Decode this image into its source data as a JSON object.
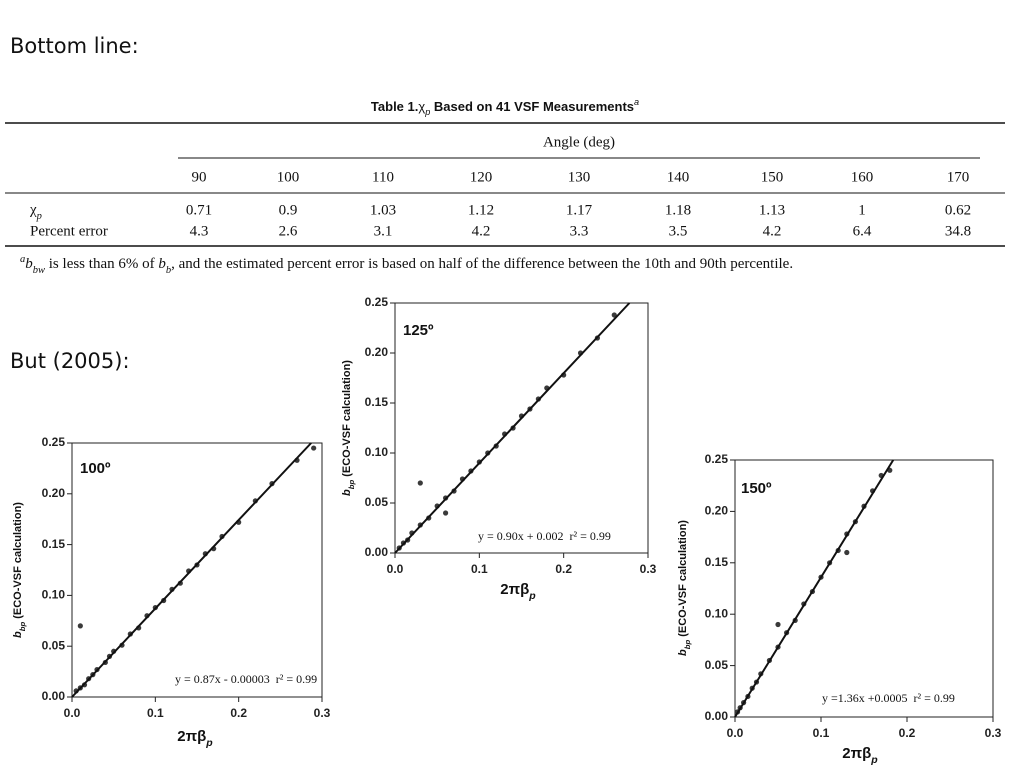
{
  "slide": {
    "heading1": "Bottom line:",
    "heading2": "But (2005):"
  },
  "table": {
    "title": {
      "label": "Table 1.",
      "symbol": "χ",
      "subscript": "p",
      "text": " Based on 41 VSF Measurements",
      "superscript": "a"
    },
    "header": "Angle (deg)",
    "columns": [
      90,
      100,
      110,
      120,
      130,
      140,
      150,
      160,
      170
    ],
    "rows": [
      {
        "label": {
          "symbol": "χ",
          "subscript": "p"
        },
        "values": [
          0.71,
          0.9,
          1.03,
          1.12,
          1.17,
          1.18,
          1.13,
          1,
          0.62
        ]
      },
      {
        "label": "Percent error",
        "values": [
          4.3,
          2.6,
          3.1,
          4.2,
          3.3,
          3.5,
          4.2,
          6.4,
          34.8
        ]
      }
    ],
    "footnote": {
      "superscript": "a",
      "symbol": "b",
      "subscript": "bw",
      "text1": " is less than 6% of ",
      "symbol2": "b",
      "subscript2": "b",
      "text2": ", and the estimated percent error is based on half of the difference between the 10th and 90th percentile."
    }
  },
  "chart_data": [
    {
      "type": "scatter",
      "title": "100º",
      "annotation": "y = 0.87x - 0.00003  r² = 0.99",
      "x_label": {
        "symbol": "2πβ",
        "subscript": "p"
      },
      "y_label": {
        "symbol": "b",
        "subscript": "bp",
        "text": " (ECO-VSF calculation)"
      },
      "xlim": [
        0,
        0.3
      ],
      "ylim": [
        0,
        0.25
      ],
      "xticks": [
        {
          "value": 0,
          "label": "0.0"
        },
        0.1,
        0.2,
        0.3
      ],
      "yticks": [
        {
          "value": 0,
          "label": "0.00"
        },
        0.05,
        {
          "value": 0.1,
          "label": "0.10"
        },
        0.15,
        {
          "value": 0.2,
          "label": "0.20"
        },
        0.25
      ],
      "color": "#3a3a3a",
      "x": [
        0.005,
        0.01,
        0.015,
        0.02,
        0.025,
        0.03,
        0.04,
        0.05,
        0.06,
        0.07,
        0.08,
        0.09,
        0.1,
        0.11,
        0.12,
        0.13,
        0.14,
        0.15,
        0.16,
        0.17,
        0.18,
        0.2,
        0.22,
        0.24,
        0.27,
        0.29,
        0.01,
        0.045
      ],
      "values": [
        0.006,
        0.009,
        0.012,
        0.018,
        0.022,
        0.027,
        0.034,
        0.045,
        0.051,
        0.062,
        0.068,
        0.08,
        0.088,
        0.095,
        0.106,
        0.112,
        0.124,
        0.13,
        0.141,
        0.146,
        0.158,
        0.172,
        0.193,
        0.21,
        0.233,
        0.245,
        0.07,
        0.04
      ],
      "fit": {
        "x": [
          0,
          0.287
        ],
        "values": [
          0,
          0.25
        ]
      }
    },
    {
      "type": "scatter",
      "title": "125º",
      "annotation": "y = 0.90x + 0.002  r² = 0.99",
      "x_label": {
        "symbol": "2πβ",
        "subscript": "p"
      },
      "y_label": {
        "symbol": "b",
        "subscript": "bp",
        "text": " (ECO-VSF calculation)"
      },
      "xlim": [
        0,
        0.3
      ],
      "ylim": [
        0,
        0.25
      ],
      "xticks": [
        {
          "value": 0,
          "label": "0.0"
        },
        0.1,
        0.2,
        0.3
      ],
      "yticks": [
        {
          "value": 0,
          "label": "0.00"
        },
        0.05,
        {
          "value": 0.1,
          "label": "0.10"
        },
        0.15,
        {
          "value": 0.2,
          "label": "0.20"
        },
        0.25
      ],
      "color": "#3a3a3a",
      "x": [
        0.005,
        0.01,
        0.015,
        0.02,
        0.03,
        0.04,
        0.05,
        0.06,
        0.07,
        0.08,
        0.09,
        0.1,
        0.11,
        0.12,
        0.13,
        0.14,
        0.15,
        0.16,
        0.17,
        0.18,
        0.2,
        0.22,
        0.24,
        0.26,
        0.03,
        0.06
      ],
      "values": [
        0.005,
        0.01,
        0.013,
        0.02,
        0.028,
        0.035,
        0.047,
        0.055,
        0.062,
        0.074,
        0.082,
        0.091,
        0.1,
        0.107,
        0.119,
        0.125,
        0.137,
        0.144,
        0.154,
        0.165,
        0.178,
        0.2,
        0.215,
        0.238,
        0.07,
        0.04
      ],
      "fit": {
        "x": [
          0,
          0.278
        ],
        "values": [
          0,
          0.25
        ]
      }
    },
    {
      "type": "scatter",
      "title": "150º",
      "annotation": "y =1.36x +0.0005  r² = 0.99",
      "x_label": {
        "symbol": "2πβ",
        "subscript": "p"
      },
      "y_label": {
        "symbol": "b",
        "subscript": "bp",
        "text": " (ECO-VSF calculation)"
      },
      "xlim": [
        0,
        0.3
      ],
      "ylim": [
        0,
        0.25
      ],
      "xticks": [
        {
          "value": 0,
          "label": "0.0"
        },
        0.1,
        0.2,
        0.3
      ],
      "yticks": [
        {
          "value": 0,
          "label": "0.00"
        },
        0.05,
        {
          "value": 0.1,
          "label": "0.10"
        },
        0.15,
        {
          "value": 0.2,
          "label": "0.20"
        },
        0.25
      ],
      "color": "#3a3a3a",
      "x": [
        0.003,
        0.006,
        0.01,
        0.015,
        0.02,
        0.025,
        0.03,
        0.04,
        0.05,
        0.06,
        0.07,
        0.08,
        0.09,
        0.1,
        0.11,
        0.12,
        0.13,
        0.14,
        0.15,
        0.16,
        0.17,
        0.18,
        0.05,
        0.13
      ],
      "values": [
        0.005,
        0.009,
        0.014,
        0.02,
        0.028,
        0.034,
        0.042,
        0.055,
        0.068,
        0.082,
        0.094,
        0.11,
        0.122,
        0.136,
        0.15,
        0.162,
        0.178,
        0.19,
        0.205,
        0.22,
        0.235,
        0.24,
        0.09,
        0.16
      ],
      "fit": {
        "x": [
          0,
          0.184
        ],
        "values": [
          0,
          0.25
        ]
      }
    }
  ]
}
